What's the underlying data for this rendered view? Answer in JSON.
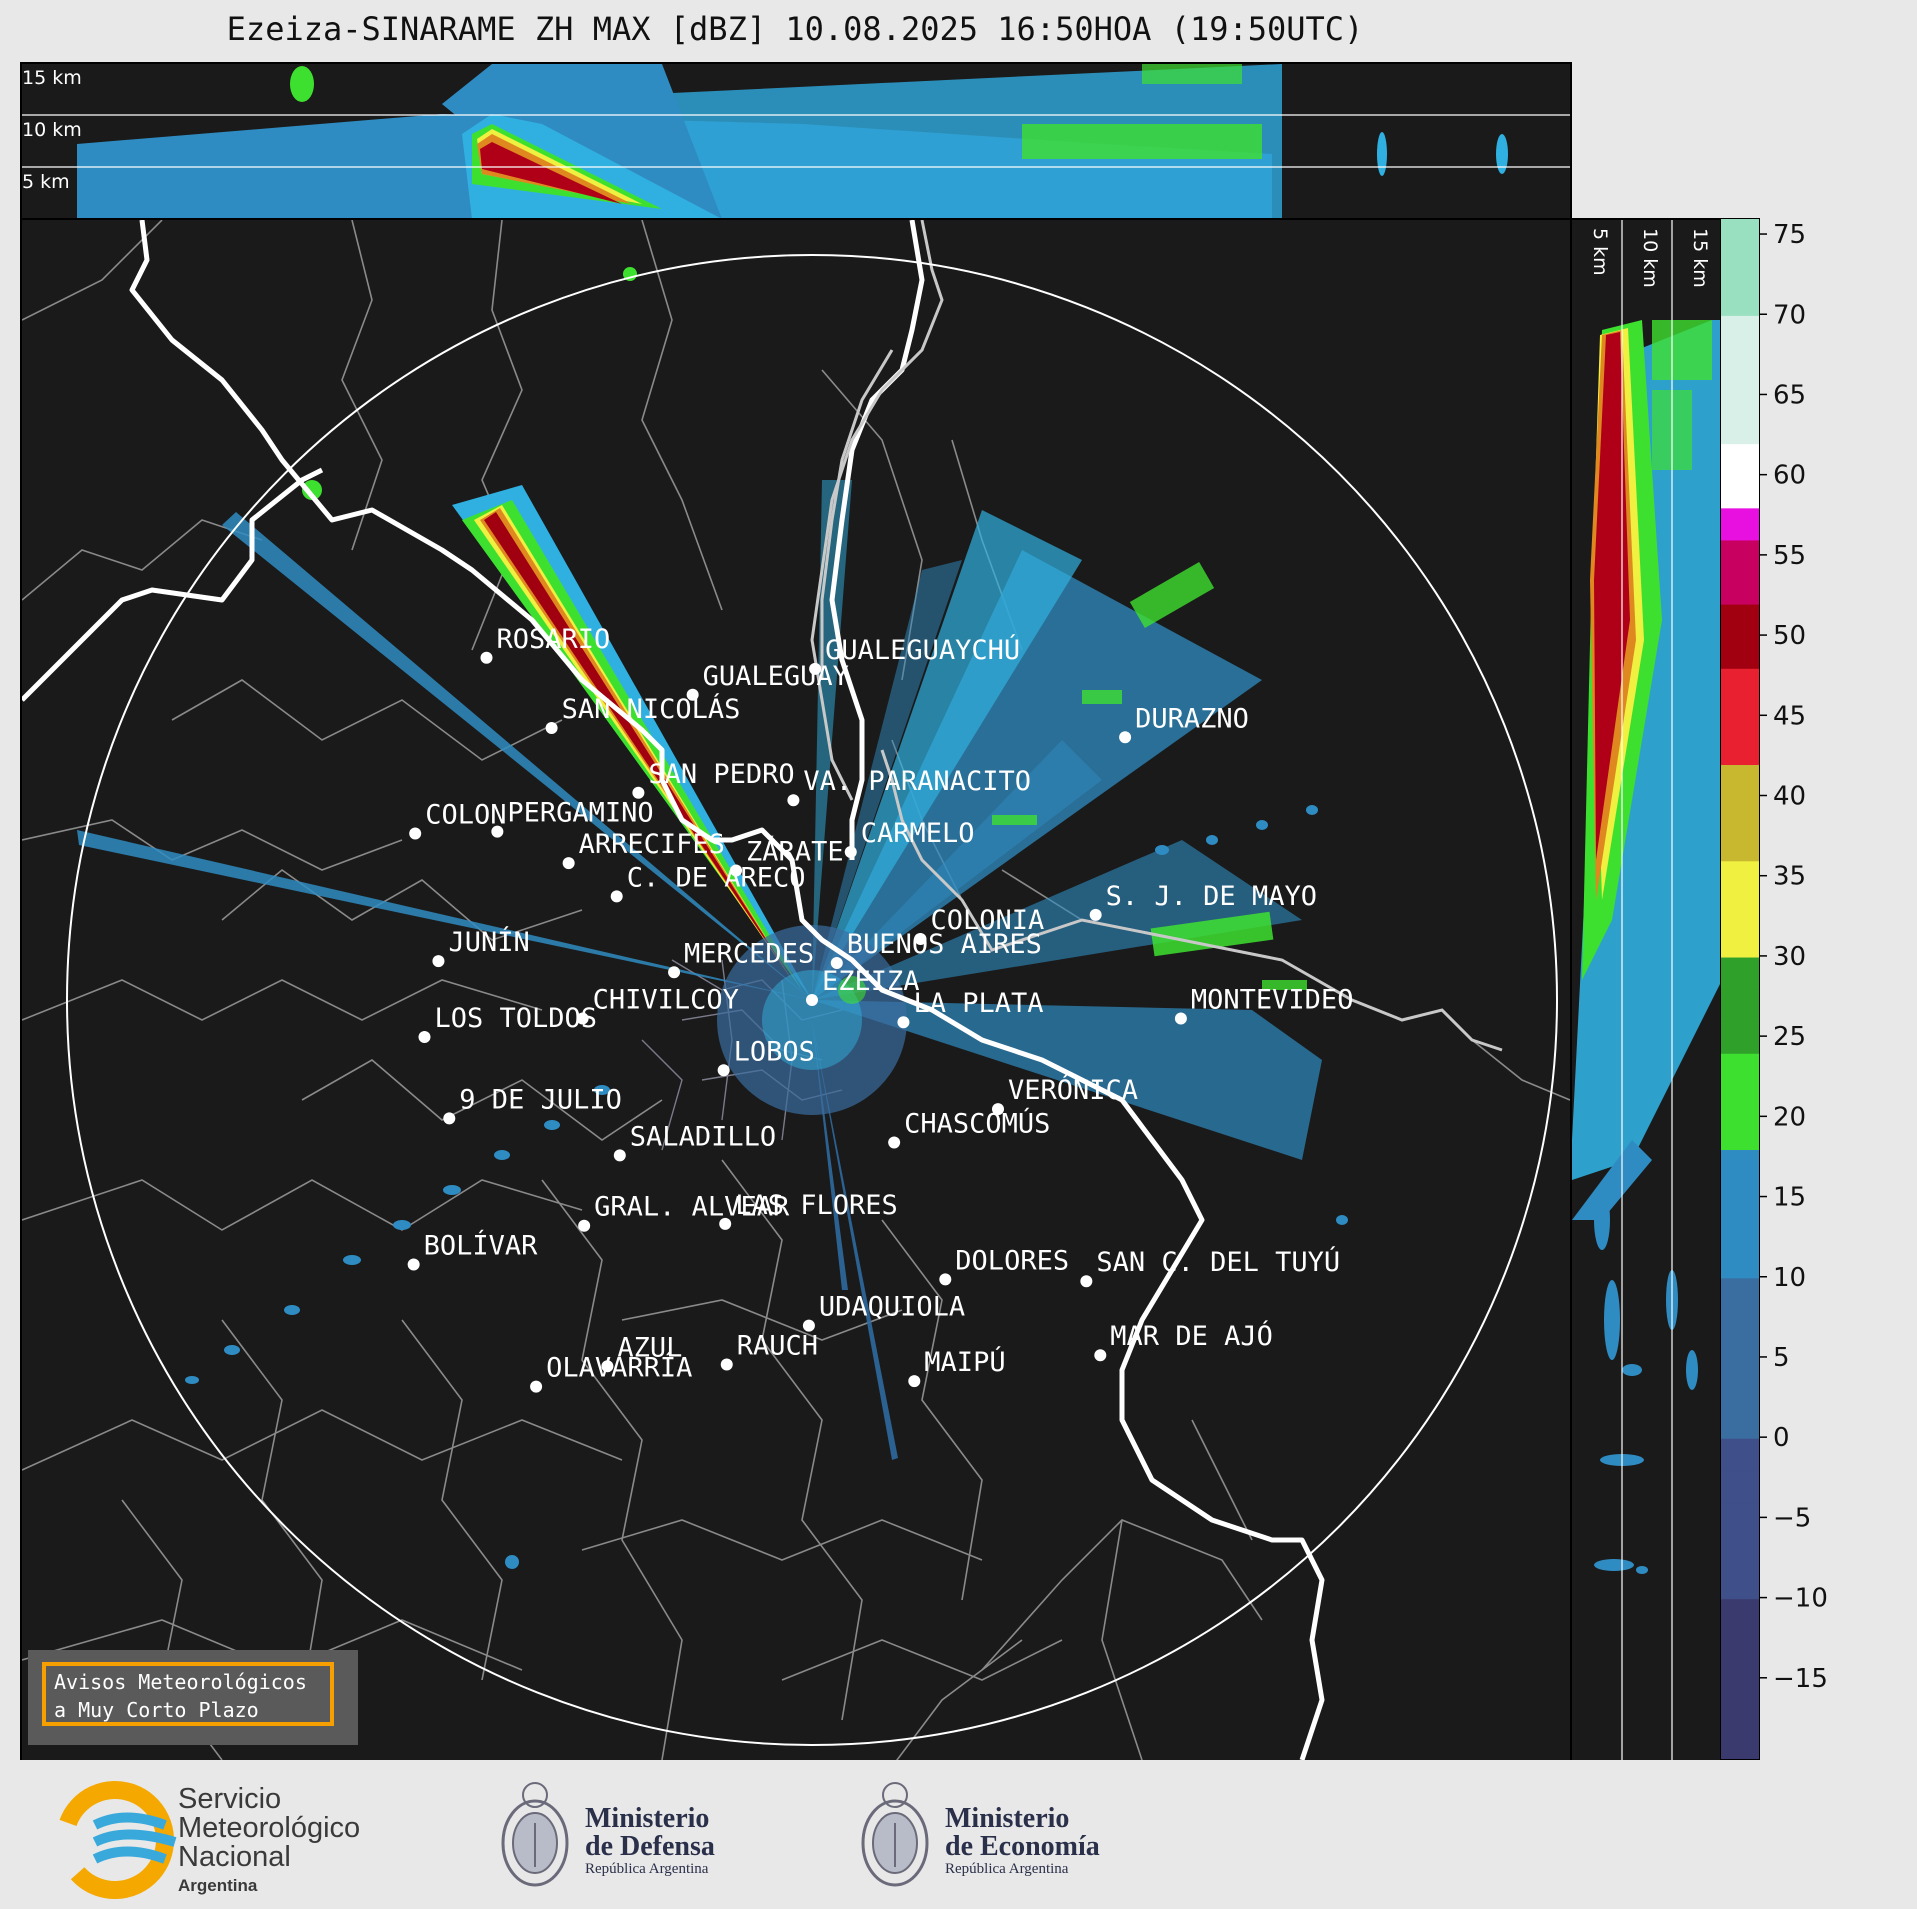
{
  "title": "Ezeiza-SINARAME ZH MAX [dBZ] 10.08.2025 16:50HOA (19:50UTC)",
  "top_panel": {
    "height_labels": [
      "15 km",
      "10 km",
      "5 km"
    ]
  },
  "side_panel": {
    "height_labels": [
      "5 km",
      "10 km",
      "15 km"
    ]
  },
  "colorbar": {
    "ticks": [
      "75",
      "70",
      "65",
      "60",
      "55",
      "50",
      "45",
      "40",
      "35",
      "30",
      "25",
      "20",
      "15",
      "10",
      "5",
      "0",
      "−5",
      "−10",
      "−15"
    ],
    "min": -20,
    "max": 76,
    "stops": [
      {
        "v": -20,
        "c": "#3b3a6e"
      },
      {
        "v": -10,
        "c": "#3f4f8a"
      },
      {
        "v": 0,
        "c": "#3b6ea0"
      },
      {
        "v": 10,
        "c": "#2f8cc2"
      },
      {
        "v": 18,
        "c": "#30b0e0"
      },
      {
        "v": 18.01,
        "c": "#3ee030"
      },
      {
        "v": 24,
        "c": "#2fa02a"
      },
      {
        "v": 30,
        "c": "#226a1e"
      },
      {
        "v": 30.01,
        "c": "#f0f040"
      },
      {
        "v": 36,
        "c": "#c8b830"
      },
      {
        "v": 42,
        "c": "#e08820"
      },
      {
        "v": 42.01,
        "c": "#e82030"
      },
      {
        "v": 48,
        "c": "#a00010"
      },
      {
        "v": 52,
        "c": "#c80060"
      },
      {
        "v": 56,
        "c": "#e810e0"
      },
      {
        "v": 58,
        "c": "#a010b0"
      },
      {
        "v": 58.01,
        "c": "#ffffff"
      },
      {
        "v": 62,
        "c": "#d8f0e8"
      },
      {
        "v": 70,
        "c": "#98e0c0"
      },
      {
        "v": 76,
        "c": "#80d8b8"
      }
    ]
  },
  "cities": [
    {
      "name": "ROSARIO",
      "lon": -60.64,
      "lat": -32.95
    },
    {
      "name": "GUALEGUAYCHÚ",
      "lon": -58.52,
      "lat": -33.01
    },
    {
      "name": "GUALEGUAY",
      "lon": -59.31,
      "lat": -33.15
    },
    {
      "name": "SAN NICOLÁS",
      "lon": -60.22,
      "lat": -33.33
    },
    {
      "name": "DURAZNO",
      "lon": -56.52,
      "lat": -33.38
    },
    {
      "name": "SAN PEDRO",
      "lon": -59.66,
      "lat": -33.68
    },
    {
      "name": "VA. PARANACITO",
      "lon": -58.66,
      "lat": -33.72
    },
    {
      "name": "COLON",
      "lon": -61.1,
      "lat": -33.9
    },
    {
      "name": "PERGAMINO",
      "lon": -60.57,
      "lat": -33.89
    },
    {
      "name": "CARMELO",
      "lon": -58.29,
      "lat": -34.0
    },
    {
      "name": "ARRECIFES",
      "lon": -60.11,
      "lat": -34.06
    },
    {
      "name": "ZÁRATE",
      "lon": -59.03,
      "lat": -34.1
    },
    {
      "name": "C. DE ARECO",
      "lon": -59.8,
      "lat": -34.24
    },
    {
      "name": "S. J. DE MAYO",
      "lon": -56.71,
      "lat": -34.34
    },
    {
      "name": "COLONIA",
      "lon": -57.84,
      "lat": -34.47
    },
    {
      "name": "BUENOS AIRES",
      "lon": -58.38,
      "lat": -34.6
    },
    {
      "name": "JUNÍN",
      "lon": -60.95,
      "lat": -34.59
    },
    {
      "name": "MERCEDES",
      "lon": -59.43,
      "lat": -34.65
    },
    {
      "name": "EZEIZA",
      "lon": -58.54,
      "lat": -34.8
    },
    {
      "name": "CHIVILCOY",
      "lon": -60.02,
      "lat": -34.9
    },
    {
      "name": "LA PLATA",
      "lon": -57.95,
      "lat": -34.92
    },
    {
      "name": "MONTEVIDEO",
      "lon": -56.16,
      "lat": -34.9
    },
    {
      "name": "LOS TOLDOS",
      "lon": -61.04,
      "lat": -35.0
    },
    {
      "name": "LOBOS",
      "lon": -59.11,
      "lat": -35.18
    },
    {
      "name": "VERÓNICA",
      "lon": -57.34,
      "lat": -35.39
    },
    {
      "name": "9 DE JULIO",
      "lon": -60.88,
      "lat": -35.44
    },
    {
      "name": "CHASCOMÚS",
      "lon": -58.01,
      "lat": -35.57
    },
    {
      "name": "SALADILLO",
      "lon": -59.78,
      "lat": -35.64
    },
    {
      "name": "GRAL. ALVEAR",
      "lon": -60.01,
      "lat": -36.02
    },
    {
      "name": "LAS FLORES",
      "lon": -59.1,
      "lat": -36.01
    },
    {
      "name": "BOLÍVAR",
      "lon": -61.11,
      "lat": -36.23
    },
    {
      "name": "DOLORES",
      "lon": -57.68,
      "lat": -36.31
    },
    {
      "name": "SAN C. DEL TUYÚ",
      "lon": -56.77,
      "lat": -36.32
    },
    {
      "name": "UDAQUIOLA",
      "lon": -58.56,
      "lat": -36.56
    },
    {
      "name": "MAR DE AJÓ",
      "lon": -56.68,
      "lat": -36.72
    },
    {
      "name": "AZUL",
      "lon": -59.86,
      "lat": -36.78
    },
    {
      "name": "RAUCH",
      "lon": -59.09,
      "lat": -36.77
    },
    {
      "name": "OLAVARRÍA",
      "lon": -60.32,
      "lat": -36.89
    },
    {
      "name": "MAIPÚ",
      "lon": -57.88,
      "lat": -36.86
    }
  ],
  "warning_box": {
    "line1": "Avisos Meteorológicos",
    "line2": "a Muy Corto Plazo"
  },
  "footer": {
    "smn_line1": "Servicio",
    "smn_line2": "Meteorológico",
    "smn_line3": "Nacional",
    "smn_country": "Argentina",
    "defensa_line1": "Ministerio",
    "defensa_line2": "de Defensa",
    "defensa_sub": "República Argentina",
    "economia_line1": "Ministerio",
    "economia_line2": "de Economía",
    "economia_sub": "República Argentina"
  }
}
